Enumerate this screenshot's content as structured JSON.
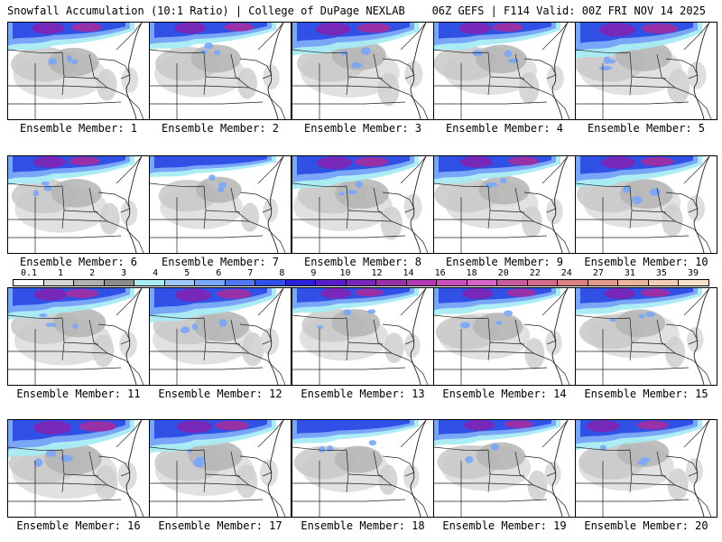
{
  "header": {
    "left_title": "Snowfall Accumulation (10:1 Ratio) | College of DuPage NEXLAB",
    "right_title": "06Z GEFS | F114 Valid: 00Z FRI NOV 14 2025"
  },
  "panels": [
    {
      "label": "Ensemble Member: 1",
      "intensity": 0.6
    },
    {
      "label": "Ensemble Member: 2",
      "intensity": 0.55
    },
    {
      "label": "Ensemble Member: 3",
      "intensity": 0.75
    },
    {
      "label": "Ensemble Member: 4",
      "intensity": 0.6
    },
    {
      "label": "Ensemble Member: 5",
      "intensity": 0.85
    },
    {
      "label": "Ensemble Member: 6",
      "intensity": 0.6
    },
    {
      "label": "Ensemble Member: 7",
      "intensity": 0.35
    },
    {
      "label": "Ensemble Member: 8",
      "intensity": 0.75
    },
    {
      "label": "Ensemble Member: 9",
      "intensity": 0.6
    },
    {
      "label": "Ensemble Member: 10",
      "intensity": 0.7
    },
    {
      "label": "Ensemble Member: 11",
      "intensity": 0.7
    },
    {
      "label": "Ensemble Member: 12",
      "intensity": 0.8
    },
    {
      "label": "Ensemble Member: 13",
      "intensity": 0.5
    },
    {
      "label": "Ensemble Member: 14",
      "intensity": 0.55
    },
    {
      "label": "Ensemble Member: 15",
      "intensity": 0.55
    },
    {
      "label": "Ensemble Member: 16",
      "intensity": 0.9
    },
    {
      "label": "Ensemble Member: 17",
      "intensity": 0.75
    },
    {
      "label": "Ensemble Member: 18",
      "intensity": 0.45
    },
    {
      "label": "Ensemble Member: 19",
      "intensity": 0.5
    },
    {
      "label": "Ensemble Member: 20",
      "intensity": 0.65
    }
  ],
  "legend": {
    "labels": [
      "0.1",
      "1",
      "2",
      "3",
      "4",
      "5",
      "6",
      "7",
      "8",
      "9",
      "10",
      "12",
      "14",
      "16",
      "18",
      "20",
      "22",
      "24",
      "27",
      "31",
      "35",
      "39"
    ],
    "colors": [
      "#ffffff",
      "#d4d4d4",
      "#b0b0b0",
      "#8c8c8c",
      "#a8ecf4",
      "#9ec6fa",
      "#7aa6f8",
      "#5078f0",
      "#3050e6",
      "#2c20d8",
      "#5a1ec8",
      "#7828b8",
      "#9830a8",
      "#b43ab4",
      "#c850b8",
      "#d666c6",
      "#c85aa0",
      "#d46a8c",
      "#dc8080",
      "#e09a8a",
      "#eab49c",
      "#f2ccb4",
      "#f8e2cc"
    ]
  }
}
